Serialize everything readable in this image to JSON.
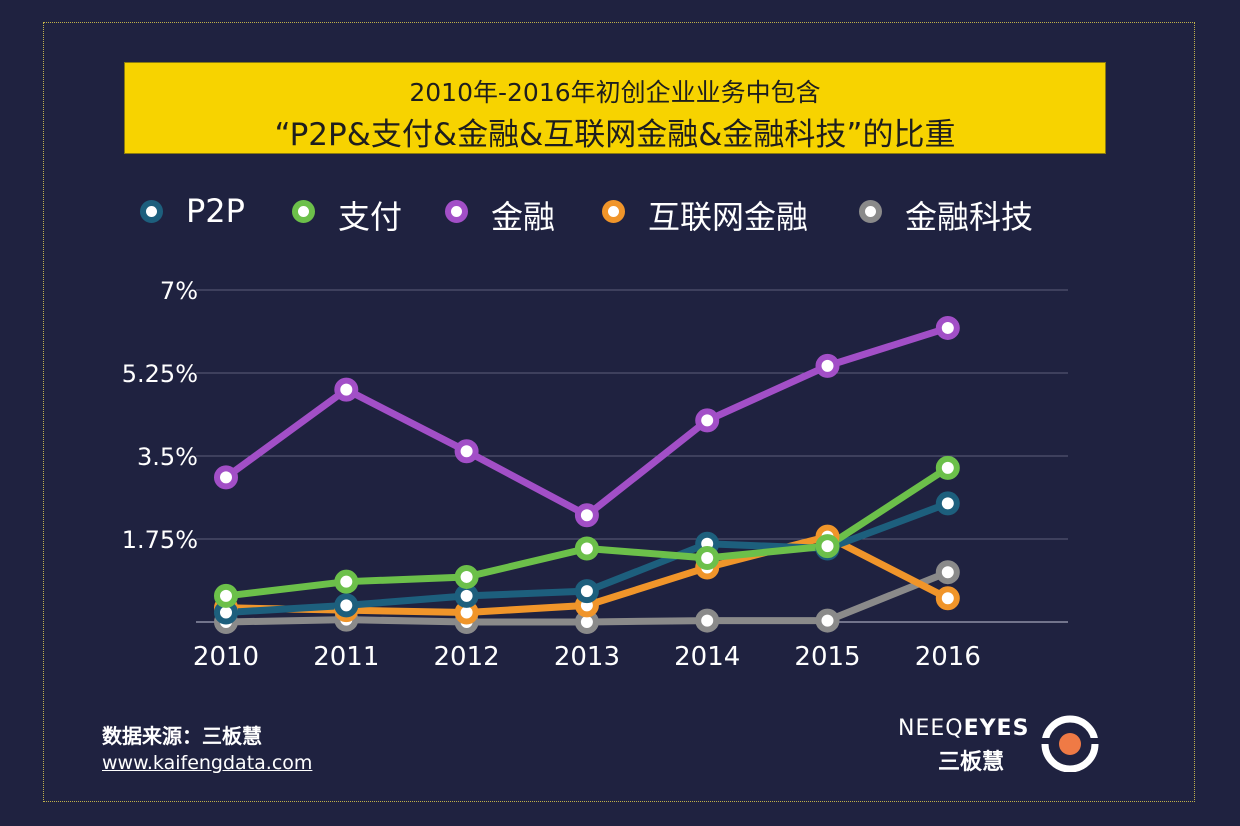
{
  "header": {
    "title_line1": "2010年-2016年初创企业业务中包含",
    "title_line2": "“P2P&支付&金融&互联网金融&金融科技”的比重"
  },
  "chart_data": {
    "type": "line",
    "categories": [
      "2010",
      "2011",
      "2012",
      "2013",
      "2014",
      "2015",
      "2016"
    ],
    "yticks": [
      "7%",
      "5.25%",
      "3.5%",
      "1.75%"
    ],
    "ylim": [
      0,
      7
    ],
    "series": [
      {
        "name": "P2P",
        "color": "#1d5f7d",
        "values": [
          0.2,
          0.35,
          0.55,
          0.65,
          1.65,
          1.55,
          2.5
        ]
      },
      {
        "name": "支付",
        "color": "#6cc04a",
        "values": [
          0.55,
          0.85,
          0.95,
          1.55,
          1.35,
          1.6,
          3.25
        ]
      },
      {
        "name": "金融",
        "color": "#a24fc7",
        "values": [
          3.05,
          4.9,
          3.6,
          2.25,
          4.25,
          5.4,
          6.2
        ]
      },
      {
        "name": "互联网金融",
        "color": "#f0952a",
        "values": [
          0.3,
          0.25,
          0.2,
          0.35,
          1.15,
          1.8,
          0.5
        ]
      },
      {
        "name": "金融科技",
        "color": "#8a8a8a",
        "values": [
          0.0,
          0.05,
          0.0,
          0.0,
          0.03,
          0.03,
          1.05
        ]
      }
    ]
  },
  "footer": {
    "source": "数据来源：三板慧",
    "url": "www.kaifengdata.com",
    "logo_en_a": "NEEQ",
    "logo_en_b": "EYES",
    "logo_cn": "三板慧"
  }
}
